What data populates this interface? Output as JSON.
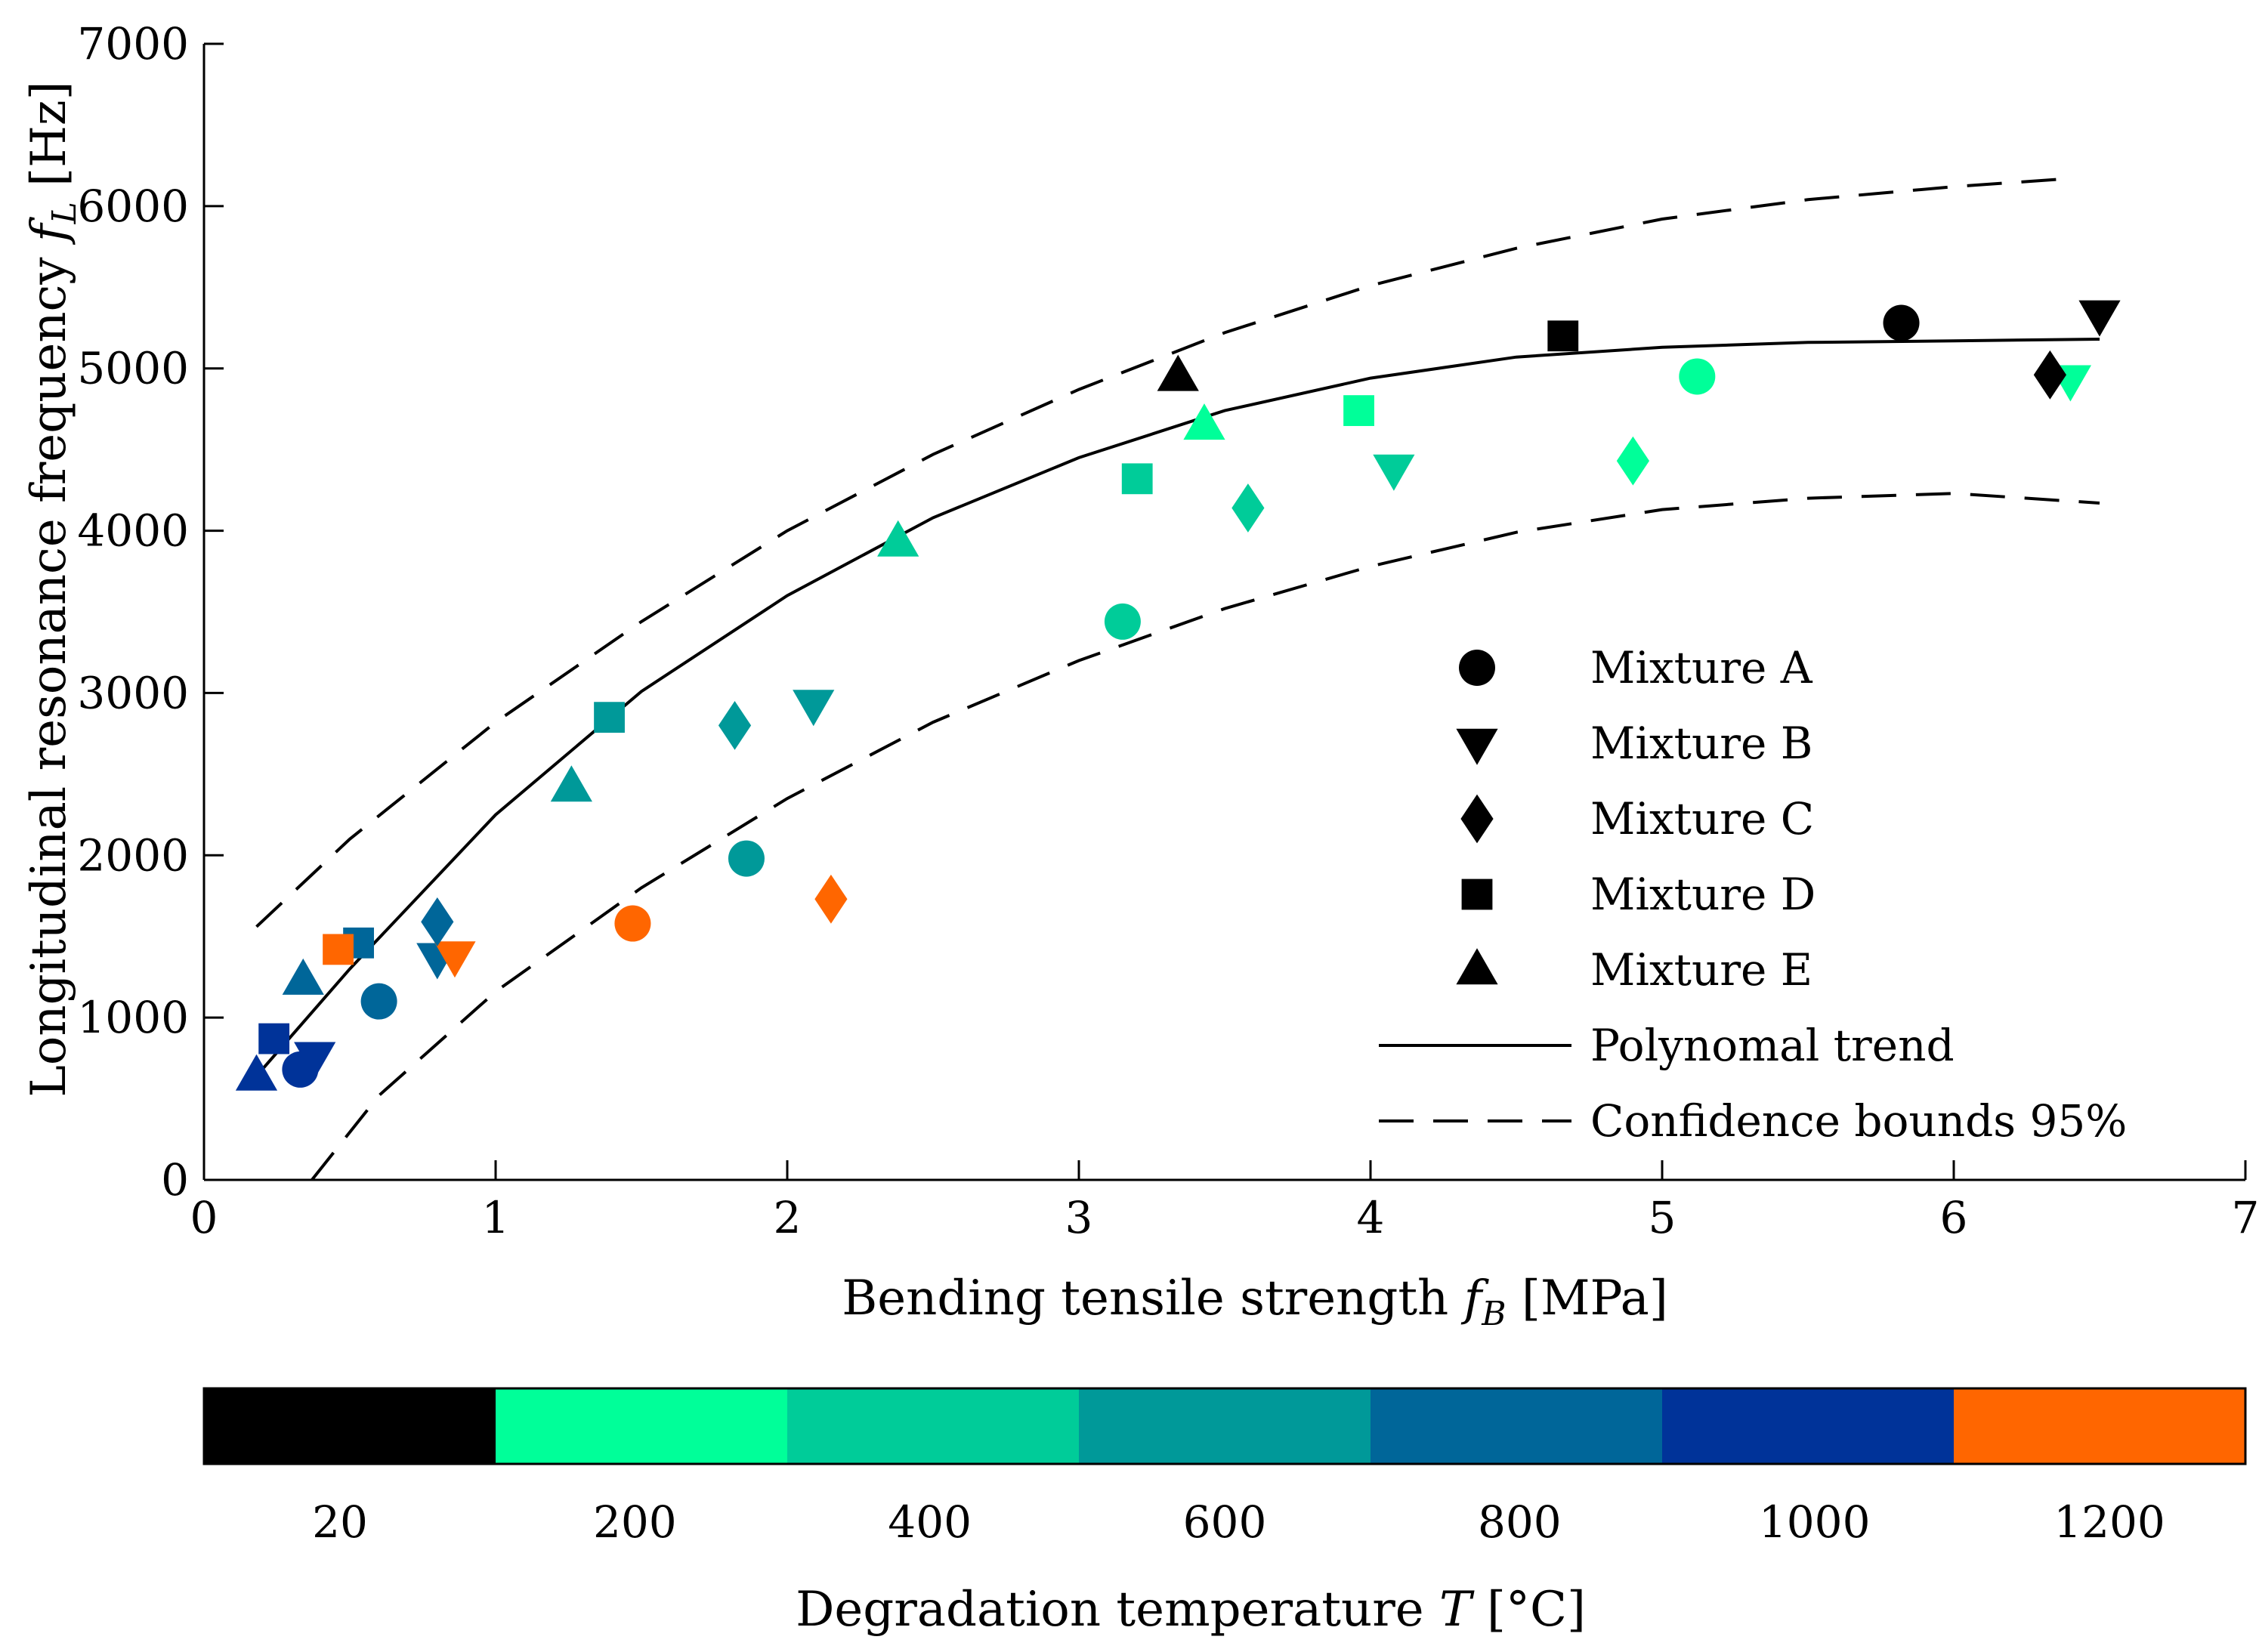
{
  "chart_data": {
    "type": "scatter",
    "xlabel": "Bending tensile strength",
    "xlabel_symbol": "f",
    "xlabel_sub": "B",
    "xlabel_unit": "[MPa]",
    "ylabel": "Longitudinal resonance frequency",
    "ylabel_symbol": "f",
    "ylabel_sub": "L",
    "ylabel_unit": "[Hz]",
    "xlim": [
      0,
      7
    ],
    "ylim": [
      0,
      7000
    ],
    "xticks": [
      "0",
      "1",
      "2",
      "3",
      "4",
      "5",
      "6",
      "7"
    ],
    "yticks": [
      "0",
      "1000",
      "2000",
      "3000",
      "4000",
      "5000",
      "6000",
      "7000"
    ],
    "grid": false,
    "legend_position": "center-right",
    "legend": [
      {
        "label": "Mixture A",
        "marker": "circle"
      },
      {
        "label": "Mixture B",
        "marker": "triangle-down"
      },
      {
        "label": "Mixture C",
        "marker": "diamond"
      },
      {
        "label": "Mixture D",
        "marker": "square"
      },
      {
        "label": "Mixture E",
        "marker": "triangle-up"
      },
      {
        "label": "Polynomal trend",
        "marker": "solid-line"
      },
      {
        "label": "Confidence bounds 95%",
        "marker": "dashed-line"
      }
    ],
    "temperature_colors": {
      "20": "#000000",
      "200": "#00ff99",
      "400": "#00cc99",
      "600": "#009999",
      "800": "#006699",
      "1000": "#003399",
      "1200": "#ff6600"
    },
    "points": [
      {
        "mixture": "A",
        "T": 20,
        "x": 5.82,
        "y": 5280
      },
      {
        "mixture": "A",
        "T": 200,
        "x": 5.12,
        "y": 4950
      },
      {
        "mixture": "A",
        "T": 400,
        "x": 3.15,
        "y": 3440
      },
      {
        "mixture": "A",
        "T": 600,
        "x": 1.86,
        "y": 1980
      },
      {
        "mixture": "A",
        "T": 800,
        "x": 0.6,
        "y": 1100
      },
      {
        "mixture": "A",
        "T": 1000,
        "x": 0.33,
        "y": 680
      },
      {
        "mixture": "A",
        "T": 1200,
        "x": 1.47,
        "y": 1580
      },
      {
        "mixture": "B",
        "T": 20,
        "x": 6.5,
        "y": 5330
      },
      {
        "mixture": "B",
        "T": 200,
        "x": 6.4,
        "y": 4930
      },
      {
        "mixture": "B",
        "T": 400,
        "x": 4.08,
        "y": 4380
      },
      {
        "mixture": "B",
        "T": 600,
        "x": 2.09,
        "y": 2930
      },
      {
        "mixture": "B",
        "T": 800,
        "x": 0.8,
        "y": 1370
      },
      {
        "mixture": "B",
        "T": 1000,
        "x": 0.38,
        "y": 760
      },
      {
        "mixture": "B",
        "T": 1200,
        "x": 0.86,
        "y": 1380
      },
      {
        "mixture": "C",
        "T": 20,
        "x": 6.33,
        "y": 4960
      },
      {
        "mixture": "C",
        "T": 200,
        "x": 4.9,
        "y": 4430
      },
      {
        "mixture": "C",
        "T": 400,
        "x": 3.58,
        "y": 4140
      },
      {
        "mixture": "C",
        "T": 600,
        "x": 1.82,
        "y": 2800
      },
      {
        "mixture": "C",
        "T": 800,
        "x": 0.8,
        "y": 1590
      },
      {
        "mixture": "C",
        "T": 1200,
        "x": 2.15,
        "y": 1730
      },
      {
        "mixture": "D",
        "T": 20,
        "x": 4.66,
        "y": 5200
      },
      {
        "mixture": "D",
        "T": 200,
        "x": 3.96,
        "y": 4740
      },
      {
        "mixture": "D",
        "T": 400,
        "x": 3.2,
        "y": 4320
      },
      {
        "mixture": "D",
        "T": 600,
        "x": 1.39,
        "y": 2850
      },
      {
        "mixture": "D",
        "T": 800,
        "x": 0.53,
        "y": 1460
      },
      {
        "mixture": "D",
        "T": 1000,
        "x": 0.24,
        "y": 870
      },
      {
        "mixture": "D",
        "T": 1200,
        "x": 0.46,
        "y": 1420
      },
      {
        "mixture": "E",
        "T": 20,
        "x": 3.34,
        "y": 4950
      },
      {
        "mixture": "E",
        "T": 200,
        "x": 3.43,
        "y": 4650
      },
      {
        "mixture": "E",
        "T": 400,
        "x": 2.38,
        "y": 3930
      },
      {
        "mixture": "E",
        "T": 600,
        "x": 1.26,
        "y": 2420
      },
      {
        "mixture": "E",
        "T": 800,
        "x": 0.34,
        "y": 1230
      },
      {
        "mixture": "E",
        "T": 1000,
        "x": 0.18,
        "y": 640
      }
    ],
    "trend": [
      [
        0.18,
        640
      ],
      [
        0.5,
        1300
      ],
      [
        1,
        2250
      ],
      [
        1.5,
        3010
      ],
      [
        2,
        3600
      ],
      [
        2.5,
        4080
      ],
      [
        3,
        4450
      ],
      [
        3.5,
        4740
      ],
      [
        4,
        4940
      ],
      [
        4.5,
        5070
      ],
      [
        5,
        5130
      ],
      [
        5.5,
        5160
      ],
      [
        6,
        5170
      ],
      [
        6.5,
        5180
      ]
    ],
    "upper_bound": [
      [
        0.18,
        1560
      ],
      [
        0.5,
        2100
      ],
      [
        1,
        2820
      ],
      [
        1.5,
        3440
      ],
      [
        2,
        4000
      ],
      [
        2.5,
        4470
      ],
      [
        3,
        4870
      ],
      [
        3.5,
        5220
      ],
      [
        4,
        5510
      ],
      [
        4.5,
        5740
      ],
      [
        5,
        5920
      ],
      [
        5.5,
        6040
      ],
      [
        6,
        6120
      ],
      [
        6.4,
        6170
      ]
    ],
    "lower_bound": [
      [
        0.37,
        0
      ],
      [
        0.6,
        520
      ],
      [
        1,
        1160
      ],
      [
        1.5,
        1800
      ],
      [
        2,
        2350
      ],
      [
        2.5,
        2820
      ],
      [
        3,
        3200
      ],
      [
        3.5,
        3520
      ],
      [
        4,
        3780
      ],
      [
        4.5,
        3990
      ],
      [
        5,
        4130
      ],
      [
        5.5,
        4200
      ],
      [
        6,
        4230
      ],
      [
        6.5,
        4170
      ]
    ],
    "colorbar": {
      "label": "Degradation temperature",
      "label_symbol": "T",
      "label_unit": "[°C]",
      "categories": [
        "20",
        "200",
        "400",
        "600",
        "800",
        "1000",
        "1200"
      ]
    }
  }
}
